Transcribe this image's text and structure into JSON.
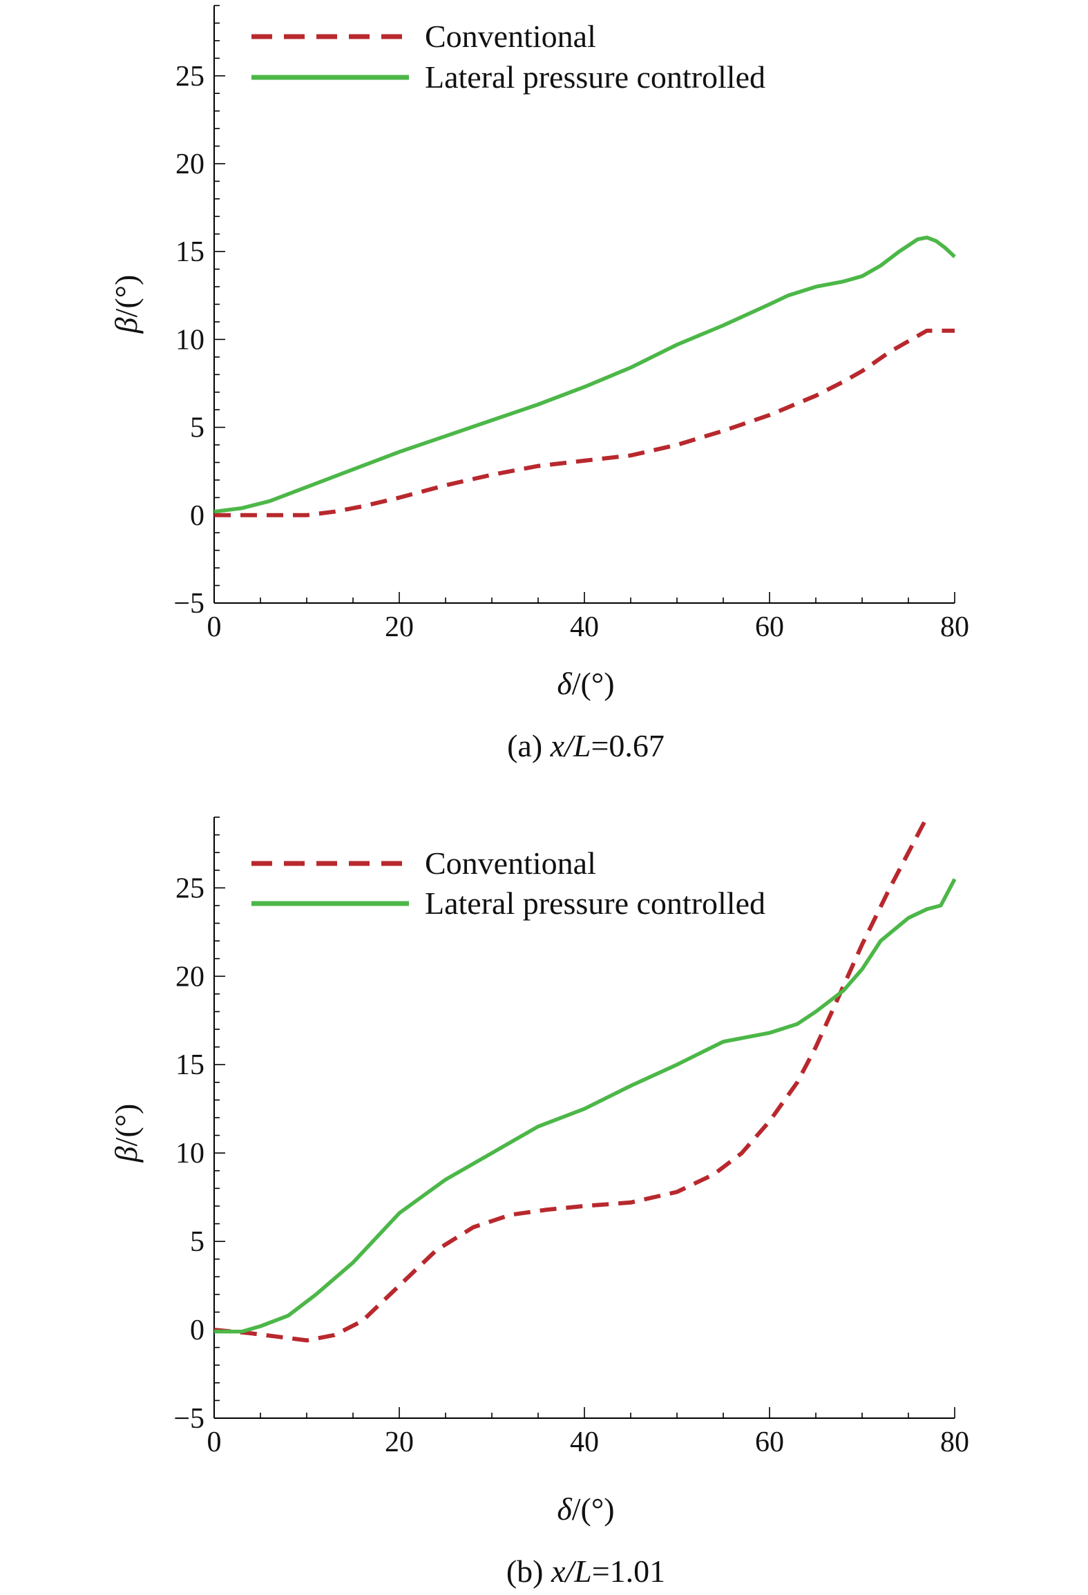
{
  "colors": {
    "conventional": "#b8282d",
    "lateral": "#4cb748"
  },
  "chart_data": [
    {
      "type": "line",
      "caption_prefix": "(a) ",
      "caption_var": "x/L",
      "caption_value": "=0.67",
      "xlabel_symbol": "δ",
      "xlabel_unit": "/(°)",
      "ylabel_symbol": "β",
      "ylabel_unit": "/(°)",
      "xlim": [
        0,
        80
      ],
      "ylim": [
        -5,
        29
      ],
      "xticks": [
        0,
        20,
        40,
        60,
        80
      ],
      "yticks": [
        -5,
        0,
        5,
        10,
        15,
        20,
        25
      ],
      "xtick_labels": [
        "0",
        "20",
        "40",
        "60",
        "80"
      ],
      "ytick_labels": [
        "−5",
        "0",
        "5",
        "10",
        "15",
        "20",
        "25"
      ],
      "legend": [
        "Conventional",
        "Lateral pressure controlled"
      ],
      "series": [
        {
          "name": "Conventional",
          "style": "dashed",
          "x": [
            0,
            5,
            10,
            13,
            16,
            20,
            25,
            30,
            35,
            40,
            45,
            50,
            55,
            60,
            65,
            68,
            70,
            73,
            77,
            80
          ],
          "y": [
            0,
            0,
            0,
            0.2,
            0.5,
            1.0,
            1.7,
            2.3,
            2.8,
            3.1,
            3.4,
            4.0,
            4.8,
            5.7,
            6.8,
            7.6,
            8.2,
            9.3,
            10.5,
            10.5
          ]
        },
        {
          "name": "Lateral pressure controlled",
          "style": "solid",
          "x": [
            0,
            3,
            6,
            10,
            15,
            20,
            25,
            30,
            35,
            40,
            45,
            50,
            55,
            60,
            62,
            65,
            68,
            70,
            72,
            74,
            76,
            77,
            78,
            79,
            80
          ],
          "y": [
            0.2,
            0.4,
            0.8,
            1.6,
            2.6,
            3.6,
            4.5,
            5.4,
            6.3,
            7.3,
            8.4,
            9.7,
            10.8,
            12.0,
            12.5,
            13.0,
            13.3,
            13.6,
            14.2,
            15.0,
            15.7,
            15.8,
            15.6,
            15.2,
            14.7
          ]
        }
      ]
    },
    {
      "type": "line",
      "caption_prefix": "(b) ",
      "caption_var": "x/L",
      "caption_value": "=1.01",
      "xlabel_symbol": "δ",
      "xlabel_unit": "/(°)",
      "ylabel_symbol": "β",
      "ylabel_unit": "/(°)",
      "xlim": [
        0,
        80
      ],
      "ylim": [
        -5,
        29
      ],
      "xticks": [
        0,
        20,
        40,
        60,
        80
      ],
      "yticks": [
        -5,
        0,
        5,
        10,
        15,
        20,
        25
      ],
      "xtick_labels": [
        "0",
        "20",
        "40",
        "60",
        "80"
      ],
      "ytick_labels": [
        "−5",
        "0",
        "5",
        "10",
        "15",
        "20",
        "25"
      ],
      "legend": [
        "Conventional",
        "Lateral pressure controlled"
      ],
      "series": [
        {
          "name": "Conventional",
          "style": "dashed",
          "x": [
            0,
            4,
            7,
            10,
            13,
            16,
            20,
            24,
            28,
            32,
            36,
            40,
            45,
            50,
            54,
            57,
            60,
            63,
            65,
            67,
            70,
            73,
            77
          ],
          "y": [
            0,
            -0.2,
            -0.4,
            -0.6,
            -0.3,
            0.5,
            2.5,
            4.5,
            5.8,
            6.5,
            6.8,
            7.0,
            7.2,
            7.8,
            8.8,
            10.0,
            11.8,
            14.0,
            16.0,
            18.3,
            21.8,
            25.0,
            29.0
          ]
        },
        {
          "name": "Lateral pressure controlled",
          "style": "solid",
          "x": [
            0,
            3,
            5,
            8,
            11,
            15,
            20,
            25,
            30,
            35,
            40,
            45,
            50,
            55,
            58,
            60,
            63,
            65,
            68,
            70,
            72,
            75,
            77,
            78.5,
            79.5,
            80
          ],
          "y": [
            -0.1,
            -0.1,
            0.2,
            0.8,
            2.0,
            3.8,
            6.6,
            8.5,
            10.0,
            11.5,
            12.5,
            13.8,
            15.0,
            16.3,
            16.6,
            16.8,
            17.3,
            18.0,
            19.2,
            20.4,
            22.0,
            23.3,
            23.8,
            24.0,
            25.0,
            25.5
          ]
        }
      ]
    }
  ]
}
